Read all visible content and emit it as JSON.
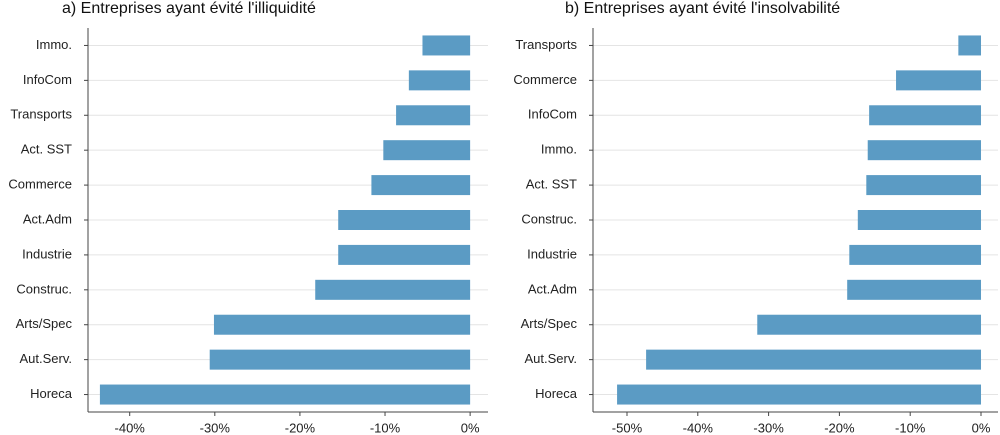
{
  "chart_data": [
    {
      "type": "bar",
      "orientation": "horizontal",
      "title": "a) Entreprises ayant évité l'illiquidité",
      "categories": [
        "Immo.",
        "InfoCom",
        "Transports",
        "Act. SST",
        "Commerce",
        "Act.Adm",
        "Industrie",
        "Construc.",
        "Arts/Spec",
        "Aut.Serv.",
        "Horeca"
      ],
      "values": [
        -5.6,
        -7.2,
        -8.7,
        -10.2,
        -11.6,
        -15.5,
        -15.5,
        -18.2,
        -30.1,
        -30.6,
        -43.5
      ],
      "color": "#5b9bc4",
      "xlim": [
        -44.9,
        2.1
      ],
      "xticks": [
        {
          "value": -40,
          "label": "-40%"
        },
        {
          "value": -30,
          "label": "-30%"
        },
        {
          "value": -20,
          "label": "-20%"
        },
        {
          "value": -10,
          "label": "-10%"
        },
        {
          "value": 0,
          "label": "0%"
        }
      ],
      "grid": true
    },
    {
      "type": "bar",
      "orientation": "horizontal",
      "title": "b) Entreprises ayant évité l'insolvabilité",
      "categories": [
        "Transports",
        "Commerce",
        "InfoCom",
        "Immo.",
        "Act. SST",
        "Construc.",
        "Industrie",
        "Act.Adm",
        "Arts/Spec",
        "Aut.Serv.",
        "Horeca"
      ],
      "values": [
        -3.2,
        -12.0,
        -15.8,
        -16.0,
        -16.2,
        -17.4,
        -18.6,
        -18.9,
        -31.6,
        -47.3,
        -51.4
      ],
      "color": "#5b9bc4",
      "xlim": [
        -54.8,
        2.4
      ],
      "xticks": [
        {
          "value": -50,
          "label": "-50%"
        },
        {
          "value": -40,
          "label": "-40%"
        },
        {
          "value": -30,
          "label": "-30%"
        },
        {
          "value": -20,
          "label": "-20%"
        },
        {
          "value": -10,
          "label": "-10%"
        },
        {
          "value": 0,
          "label": "0%"
        }
      ],
      "grid": true
    }
  ]
}
